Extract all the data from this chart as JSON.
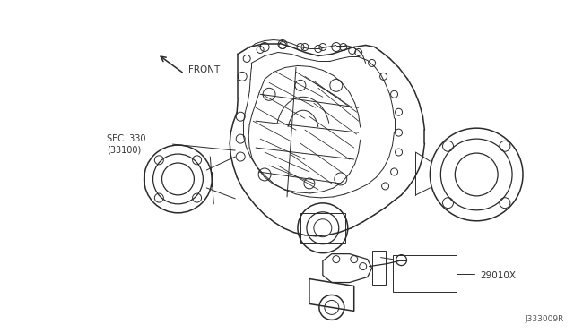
{
  "background_color": "#ffffff",
  "fig_width": 6.4,
  "fig_height": 3.72,
  "dpi": 100,
  "line_color": "#2a2a2a",
  "text_color": "#333333",
  "ref_color": "#555555",
  "label_sec330_line1": "SEC. 330",
  "label_sec330_line2": "(33100)",
  "label_part": "29010X",
  "label_ref": "J333009R",
  "label_front": "FRONT"
}
